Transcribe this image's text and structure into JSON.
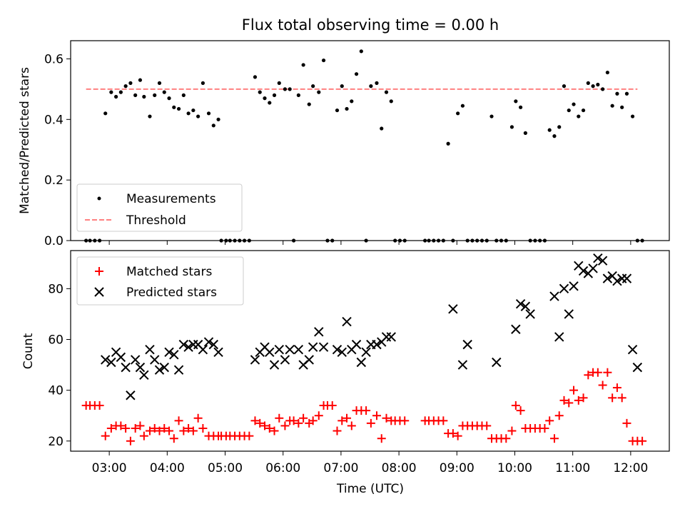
{
  "title": "Flux total observing time = 0.00 h",
  "colors": {
    "measurements": "#000000",
    "threshold": "#ff8080",
    "matched": "#ff0000",
    "predicted": "#000000"
  },
  "x_ticks": [
    "03:00",
    "04:00",
    "05:00",
    "06:00",
    "07:00",
    "08:00",
    "09:00",
    "10:00",
    "11:00",
    "12:00"
  ],
  "chart_data": [
    {
      "type": "scatter",
      "ylabel": "Matched/Predicted stars",
      "xlabel": "",
      "xlim": [
        "02:20",
        "12:40"
      ],
      "ylim": [
        0,
        0.66
      ],
      "y_ticks": [
        "0.0",
        "0.2",
        "0.4",
        "0.6"
      ],
      "legend_position": "lower-left",
      "series": [
        {
          "name": "Measurements",
          "marker": "dot",
          "x": [
            "02:36",
            "02:40",
            "02:45",
            "02:50",
            "02:56",
            "03:02",
            "03:07",
            "03:12",
            "03:17",
            "03:22",
            "03:27",
            "03:32",
            "03:36",
            "03:42",
            "03:47",
            "03:52",
            "03:57",
            "04:02",
            "04:07",
            "04:12",
            "04:17",
            "04:22",
            "04:27",
            "04:32",
            "04:37",
            "04:43",
            "04:48",
            "04:53",
            "04:56",
            "05:01",
            "05:05",
            "05:10",
            "05:15",
            "05:20",
            "05:25",
            "05:31",
            "05:36",
            "05:41",
            "05:46",
            "05:51",
            "05:56",
            "06:02",
            "06:07",
            "06:11",
            "06:16",
            "06:21",
            "06:27",
            "06:31",
            "06:37",
            "06:42",
            "06:46",
            "06:51",
            "06:56",
            "07:01",
            "07:06",
            "07:11",
            "07:16",
            "07:21",
            "07:26",
            "07:31",
            "07:37",
            "07:42",
            "07:47",
            "07:52",
            "07:56",
            "08:01",
            "08:06",
            "08:27",
            "08:31",
            "08:36",
            "08:41",
            "08:46",
            "08:51",
            "08:56",
            "09:01",
            "09:06",
            "09:11",
            "09:16",
            "09:21",
            "09:26",
            "09:31",
            "09:36",
            "09:41",
            "09:46",
            "09:51",
            "09:57",
            "10:01",
            "10:06",
            "10:11",
            "10:16",
            "10:21",
            "10:26",
            "10:31",
            "10:36",
            "10:41",
            "10:46",
            "10:51",
            "10:56",
            "11:01",
            "11:06",
            "11:11",
            "11:16",
            "11:21",
            "11:26",
            "11:31",
            "11:36",
            "11:41",
            "11:46",
            "11:51",
            "11:56",
            "12:02",
            "12:07",
            "12:12"
          ],
          "y": [
            0.0,
            0.0,
            0.0,
            0.0,
            0.42,
            0.49,
            0.475,
            0.49,
            0.51,
            0.52,
            0.48,
            0.53,
            0.475,
            0.41,
            0.48,
            0.52,
            0.49,
            0.47,
            0.44,
            0.435,
            0.48,
            0.42,
            0.43,
            0.41,
            0.52,
            0.42,
            0.38,
            0.4,
            0.0,
            0.0,
            0.0,
            0.0,
            0.0,
            0.0,
            0.0,
            0.54,
            0.49,
            0.47,
            0.455,
            0.48,
            0.52,
            0.5,
            0.5,
            0.0,
            0.48,
            0.58,
            0.45,
            0.51,
            0.49,
            0.595,
            0.0,
            0.0,
            0.43,
            0.51,
            0.435,
            0.46,
            0.55,
            0.625,
            0.0,
            0.51,
            0.52,
            0.37,
            0.49,
            0.46,
            0.0,
            0.0,
            0.0,
            0.0,
            0.0,
            0.0,
            0.0,
            0.0,
            0.32,
            0.0,
            0.42,
            0.445,
            0.0,
            0.0,
            0.0,
            0.0,
            0.0,
            0.41,
            0.0,
            0.0,
            0.0,
            0.375,
            0.46,
            0.44,
            0.355,
            0.0,
            0.0,
            0.0,
            0.0,
            0.365,
            0.345,
            0.375,
            0.51,
            0.43,
            0.45,
            0.41,
            0.43,
            0.52,
            0.51,
            0.515,
            0.5,
            0.555,
            0.445,
            0.485,
            0.44,
            0.485,
            0.41,
            0.0,
            0.0
          ]
        },
        {
          "name": "Threshold",
          "type": "line",
          "style": "dashed",
          "x": [
            "02:36",
            "12:07"
          ],
          "y": [
            0.5,
            0.5
          ]
        }
      ]
    },
    {
      "type": "scatter",
      "ylabel": "Count",
      "xlabel": "Time (UTC)",
      "xlim": [
        "02:20",
        "12:40"
      ],
      "ylim": [
        16,
        95
      ],
      "y_ticks": [
        "20",
        "40",
        "60",
        "80"
      ],
      "legend_position": "upper-left",
      "series": [
        {
          "name": "Matched stars",
          "marker": "plus",
          "x": [
            "02:36",
            "02:40",
            "02:45",
            "02:50",
            "02:56",
            "03:02",
            "03:07",
            "03:12",
            "03:17",
            "03:22",
            "03:27",
            "03:32",
            "03:36",
            "03:42",
            "03:47",
            "03:52",
            "03:57",
            "04:02",
            "04:07",
            "04:12",
            "04:17",
            "04:22",
            "04:27",
            "04:32",
            "04:37",
            "04:43",
            "04:48",
            "04:53",
            "04:56",
            "05:01",
            "05:05",
            "05:10",
            "05:15",
            "05:20",
            "05:25",
            "05:31",
            "05:36",
            "05:41",
            "05:46",
            "05:51",
            "05:56",
            "06:02",
            "06:07",
            "06:11",
            "06:16",
            "06:21",
            "06:27",
            "06:31",
            "06:37",
            "06:42",
            "06:46",
            "06:51",
            "06:56",
            "07:01",
            "07:06",
            "07:11",
            "07:16",
            "07:21",
            "07:26",
            "07:31",
            "07:37",
            "07:42",
            "07:47",
            "07:52",
            "07:56",
            "08:01",
            "08:06",
            "08:27",
            "08:31",
            "08:36",
            "08:41",
            "08:46",
            "08:51",
            "08:56",
            "09:01",
            "09:06",
            "09:11",
            "09:16",
            "09:21",
            "09:26",
            "09:31",
            "09:36",
            "09:41",
            "09:46",
            "09:51",
            "09:57",
            "10:01",
            "10:06",
            "10:11",
            "10:16",
            "10:21",
            "10:26",
            "10:31",
            "10:36",
            "10:41",
            "10:46",
            "10:51",
            "10:56",
            "11:01",
            "11:06",
            "11:11",
            "11:16",
            "11:21",
            "11:26",
            "11:31",
            "11:36",
            "11:41",
            "11:46",
            "11:51",
            "11:56",
            "12:02",
            "12:07",
            "12:12"
          ],
          "y": [
            34,
            34,
            34,
            34,
            22,
            25,
            26,
            26,
            25,
            20,
            25,
            26,
            22,
            24,
            25,
            24,
            25,
            24,
            21,
            28,
            24,
            25,
            24,
            29,
            25,
            22,
            22,
            22,
            22,
            22,
            22,
            22,
            22,
            22,
            22,
            28,
            27,
            26,
            25,
            24,
            29,
            26,
            28,
            28,
            27,
            29,
            27,
            28,
            30,
            34,
            34,
            34,
            24,
            28,
            29,
            26,
            32,
            32,
            32,
            27,
            30,
            21,
            29,
            28,
            28,
            28,
            28,
            28,
            28,
            28,
            28,
            28,
            23,
            23,
            22,
            26,
            26,
            26,
            26,
            26,
            26,
            21,
            21,
            21,
            21,
            24,
            34,
            32,
            25,
            25,
            25,
            25,
            25,
            28,
            21,
            30,
            36,
            35,
            40,
            36,
            37,
            46,
            47,
            47,
            42,
            47,
            37,
            41,
            37,
            27,
            20,
            20,
            20
          ]
        },
        {
          "name": "Predicted stars",
          "marker": "x",
          "x": [
            "02:56",
            "03:02",
            "03:07",
            "03:12",
            "03:17",
            "03:22",
            "03:27",
            "03:32",
            "03:36",
            "03:42",
            "03:47",
            "03:52",
            "03:57",
            "04:02",
            "04:07",
            "04:12",
            "04:17",
            "04:22",
            "04:27",
            "04:32",
            "04:37",
            "04:43",
            "04:48",
            "04:53",
            "05:31",
            "05:36",
            "05:41",
            "05:46",
            "05:51",
            "05:56",
            "06:02",
            "06:07",
            "06:16",
            "06:21",
            "06:27",
            "06:31",
            "06:37",
            "06:42",
            "06:56",
            "07:01",
            "07:06",
            "07:11",
            "07:16",
            "07:21",
            "07:26",
            "07:31",
            "07:37",
            "07:42",
            "07:47",
            "07:52",
            "08:56",
            "09:06",
            "09:11",
            "09:41",
            "10:01",
            "10:06",
            "10:11",
            "10:16",
            "10:41",
            "10:46",
            "10:51",
            "10:56",
            "11:01",
            "11:06",
            "11:11",
            "11:16",
            "11:21",
            "11:26",
            "11:31",
            "11:36",
            "11:41",
            "11:46",
            "11:51",
            "11:56",
            "12:02",
            "12:07"
          ],
          "y": [
            52,
            51,
            55,
            53,
            49,
            38,
            52,
            49,
            46,
            56,
            52,
            48,
            49,
            55,
            54,
            48,
            58,
            57,
            58,
            58,
            56,
            59,
            58,
            55,
            52,
            55,
            57,
            55,
            50,
            56,
            52,
            56,
            56,
            50,
            52,
            57,
            63,
            57,
            56,
            55,
            67,
            56,
            58,
            51,
            55,
            58,
            58,
            59,
            61,
            61,
            72,
            50,
            58,
            51,
            64,
            74,
            73,
            70,
            77,
            61,
            80,
            70,
            81,
            89,
            87,
            86,
            88,
            92,
            91,
            84,
            85,
            83,
            84,
            84,
            56,
            49
          ]
        }
      ]
    }
  ]
}
